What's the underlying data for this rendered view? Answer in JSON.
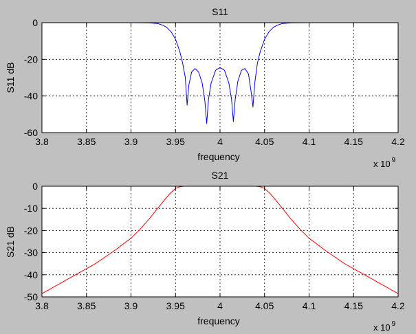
{
  "figure": {
    "background": "#c0c0c0",
    "plot_background": "#ffffff"
  },
  "chart_data": [
    {
      "type": "line",
      "title": "S11",
      "xlabel": "frequency",
      "ylabel": "S11 dB",
      "x_exponent_label": "x 10",
      "x_exponent": "9",
      "xlim": [
        3800000000.0,
        4200000000.0
      ],
      "ylim": [
        -60,
        0
      ],
      "grid": true,
      "x_ticks": [
        3800000000.0,
        3850000000.0,
        3900000000.0,
        3950000000.0,
        4000000000.0,
        4050000000.0,
        4100000000.0,
        4150000000.0,
        4200000000.0
      ],
      "x_tick_labels": [
        "3.8",
        "3.85",
        "3.9",
        "3.95",
        "4",
        "4.05",
        "4.1",
        "4.15",
        "4.2"
      ],
      "y_ticks": [
        0,
        -20,
        -40,
        -60
      ],
      "y_tick_labels": [
        "0",
        "-20",
        "-40",
        "-60"
      ],
      "series": [
        {
          "color": "#0000ff",
          "x": [
            3800000000.0,
            3900000000.0,
            3920000000.0,
            3930000000.0,
            3935000000.0,
            3940000000.0,
            3945000000.0,
            3950000000.0,
            3955000000.0,
            3958000000.0,
            3961000000.0,
            3963000000.0,
            3965000000.0,
            3968000000.0,
            3972000000.0,
            3976000000.0,
            3980000000.0,
            3983000000.0,
            3985000000.0,
            3987000000.0,
            3990000000.0,
            3995000000.0,
            4000000000.0,
            4005000000.0,
            4010000000.0,
            4013000000.0,
            4015000000.0,
            4017000000.0,
            4020000000.0,
            4024000000.0,
            4028000000.0,
            4032000000.0,
            4035000000.0,
            4037000000.0,
            4039000000.0,
            4042000000.0,
            4045000000.0,
            4050000000.0,
            4055000000.0,
            4060000000.0,
            4065000000.0,
            4070000000.0,
            4080000000.0,
            4100000000.0,
            4200000000.0
          ],
          "y": [
            0,
            0,
            -0.1,
            -0.5,
            -1.2,
            -2.5,
            -5,
            -9,
            -16,
            -22,
            -30,
            -45,
            -34,
            -27,
            -25,
            -27,
            -33,
            -43,
            -55,
            -42,
            -33,
            -26,
            -24.5,
            -26,
            -33,
            -42,
            -54,
            -42,
            -32,
            -26,
            -25,
            -28,
            -38,
            -46,
            -33,
            -22,
            -16,
            -9,
            -5,
            -2.5,
            -1.2,
            -0.5,
            -0.1,
            0,
            0
          ]
        }
      ]
    },
    {
      "type": "line",
      "title": "S21",
      "xlabel": "frequency",
      "ylabel": "S21 dB",
      "x_exponent_label": "x 10",
      "x_exponent": "9",
      "xlim": [
        3800000000.0,
        4200000000.0
      ],
      "ylim": [
        -50,
        0
      ],
      "grid": true,
      "x_ticks": [
        3800000000.0,
        3850000000.0,
        3900000000.0,
        3950000000.0,
        4000000000.0,
        4050000000.0,
        4100000000.0,
        4150000000.0,
        4200000000.0
      ],
      "x_tick_labels": [
        "3.8",
        "3.85",
        "3.9",
        "3.95",
        "4",
        "4.05",
        "4.1",
        "4.15",
        "4.2"
      ],
      "y_ticks": [
        0,
        -10,
        -20,
        -30,
        -40,
        -50
      ],
      "y_tick_labels": [
        "0",
        "-10",
        "-20",
        "-30",
        "-40",
        "-50"
      ],
      "series": [
        {
          "color": "#ff0000",
          "x": [
            3800000000.0,
            3820000000.0,
            3840000000.0,
            3860000000.0,
            3880000000.0,
            3900000000.0,
            3910000000.0,
            3920000000.0,
            3930000000.0,
            3940000000.0,
            3945000000.0,
            3950000000.0,
            3955000000.0,
            3960000000.0,
            4000000000.0,
            4040000000.0,
            4045000000.0,
            4050000000.0,
            4055000000.0,
            4060000000.0,
            4070000000.0,
            4080000000.0,
            4090000000.0,
            4100000000.0,
            4120000000.0,
            4140000000.0,
            4160000000.0,
            4180000000.0,
            4200000000.0
          ],
          "y": [
            -48.5,
            -44,
            -39.5,
            -35,
            -29.5,
            -23.5,
            -19.5,
            -15,
            -10,
            -5,
            -2.8,
            -1,
            -0.2,
            0,
            0,
            0,
            -0.2,
            -1,
            -2.8,
            -5,
            -10,
            -15,
            -19.5,
            -23.5,
            -29.5,
            -35,
            -39.5,
            -44,
            -48.5
          ]
        }
      ]
    }
  ]
}
